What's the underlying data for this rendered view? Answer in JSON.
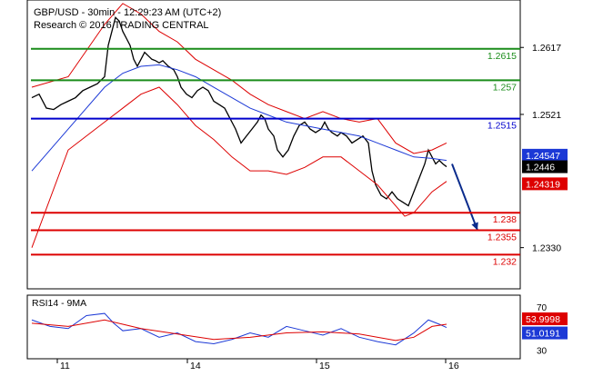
{
  "header": {
    "line1": "GBP/USD - 30min - 12:29:23 AM (UTC+2)",
    "line2": "Research © 2016 TRADING CENTRAL"
  },
  "chart_data": [
    {
      "type": "candlestick",
      "title": "GBP/USD - 30min - 12:29:23 AM (UTC+2)",
      "subtitle": "Research © 2016 TRADING CENTRAL",
      "x_ticks": [
        "11",
        "14",
        "15",
        "16"
      ],
      "ylim": [
        2.2316,
        1.2672
      ],
      "y_ticks": [
        {
          "value": 1.2617,
          "label": "1.2617"
        },
        {
          "value": 1.2521,
          "label": "1.2521"
        },
        {
          "value": 1.233,
          "label": "1.2330"
        }
      ],
      "levels": [
        {
          "value": 1.2615,
          "label": "1.2615",
          "color": "#1a8c1a"
        },
        {
          "value": 1.257,
          "label": "1.257",
          "color": "#1a8c1a"
        },
        {
          "value": 1.2515,
          "label": "1.2515",
          "color": "#0000cc"
        },
        {
          "value": 1.238,
          "label": "1.238",
          "color": "#dd0000"
        },
        {
          "value": 1.2355,
          "label": "1.2355",
          "color": "#dd0000"
        },
        {
          "value": 1.232,
          "label": "1.232",
          "color": "#dd0000"
        }
      ],
      "price_tags": [
        {
          "value": 1.24547,
          "label": "1.24547",
          "color": "#1c39d6"
        },
        {
          "value": 1.2446,
          "label": "1.2446",
          "color": "#000000"
        },
        {
          "value": 1.24319,
          "label": "1.24319",
          "color": "#dd0000"
        }
      ],
      "series": [
        {
          "name": "price",
          "color": "#000000",
          "points": [
            [
              0,
              1.2545
            ],
            [
              8,
              1.255
            ],
            [
              16,
              1.253
            ],
            [
              24,
              1.2528
            ],
            [
              32,
              1.2535
            ],
            [
              40,
              1.254
            ],
            [
              48,
              1.2545
            ],
            [
              56,
              1.2555
            ],
            [
              64,
              1.256
            ],
            [
              72,
              1.2565
            ],
            [
              80,
              1.2575
            ],
            [
              84,
              1.262
            ],
            [
              88,
              1.264
            ],
            [
              92,
              1.266
            ],
            [
              96,
              1.2655
            ],
            [
              100,
              1.264
            ],
            [
              104,
              1.263
            ],
            [
              108,
              1.262
            ],
            [
              112,
              1.26
            ],
            [
              116,
              1.259
            ],
            [
              120,
              1.26
            ],
            [
              124,
              1.261
            ],
            [
              128,
              1.2605
            ],
            [
              132,
              1.26
            ],
            [
              136,
              1.2598
            ],
            [
              140,
              1.2595
            ],
            [
              144,
              1.2598
            ],
            [
              150,
              1.259
            ],
            [
              156,
              1.2585
            ],
            [
              160,
              1.2575
            ],
            [
              164,
              1.256
            ],
            [
              170,
              1.255
            ],
            [
              176,
              1.2545
            ],
            [
              182,
              1.2555
            ],
            [
              188,
              1.256
            ],
            [
              194,
              1.2555
            ],
            [
              200,
              1.254
            ],
            [
              206,
              1.2535
            ],
            [
              212,
              1.253
            ],
            [
              218,
              1.2515
            ],
            [
              224,
              1.25
            ],
            [
              230,
              1.248
            ],
            [
              236,
              1.249
            ],
            [
              242,
              1.25
            ],
            [
              248,
              1.251
            ],
            [
              252,
              1.252
            ],
            [
              256,
              1.2515
            ],
            [
              260,
              1.25
            ],
            [
              266,
              1.249
            ],
            [
              270,
              1.247
            ],
            [
              276,
              1.246
            ],
            [
              282,
              1.247
            ],
            [
              288,
              1.249
            ],
            [
              294,
              1.2505
            ],
            [
              300,
              1.251
            ],
            [
              306,
              1.25
            ],
            [
              312,
              1.2495
            ],
            [
              318,
              1.25
            ],
            [
              322,
              1.251
            ],
            [
              326,
              1.25
            ],
            [
              330,
              1.2495
            ],
            [
              336,
              1.249
            ],
            [
              340,
              1.2495
            ],
            [
              346,
              1.249
            ],
            [
              352,
              1.248
            ],
            [
              358,
              1.2485
            ],
            [
              364,
              1.249
            ],
            [
              370,
              1.248
            ],
            [
              374,
              1.244
            ],
            [
              378,
              1.242
            ],
            [
              384,
              1.2405
            ],
            [
              390,
              1.24
            ],
            [
              396,
              1.241
            ],
            [
              402,
              1.24
            ],
            [
              408,
              1.2395
            ],
            [
              414,
              1.239
            ],
            [
              420,
              1.241
            ],
            [
              426,
              1.243
            ],
            [
              432,
              1.245
            ],
            [
              436,
              1.247
            ],
            [
              440,
              1.246
            ],
            [
              444,
              1.245
            ],
            [
              448,
              1.2455
            ],
            [
              452,
              1.245
            ],
            [
              456,
              1.2446
            ]
          ]
        },
        {
          "name": "MA50",
          "color": "#1c39d6",
          "points": [
            [
              0,
              1.244
            ],
            [
              40,
              1.25
            ],
            [
              80,
              1.256
            ],
            [
              100,
              1.258
            ],
            [
              120,
              1.259
            ],
            [
              140,
              1.2592
            ],
            [
              160,
              1.2585
            ],
            [
              180,
              1.2575
            ],
            [
              200,
              1.256
            ],
            [
              220,
              1.2545
            ],
            [
              240,
              1.253
            ],
            [
              260,
              1.252
            ],
            [
              280,
              1.251
            ],
            [
              300,
              1.2505
            ],
            [
              320,
              1.25
            ],
            [
              340,
              1.2495
            ],
            [
              360,
              1.249
            ],
            [
              380,
              1.248
            ],
            [
              400,
              1.247
            ],
            [
              420,
              1.246
            ],
            [
              440,
              1.2458
            ],
            [
              456,
              1.2455
            ]
          ]
        },
        {
          "name": "BB upper",
          "color": "#dd0000",
          "points": [
            [
              0,
              1.256
            ],
            [
              40,
              1.2575
            ],
            [
              80,
              1.265
            ],
            [
              100,
              1.268
            ],
            [
              120,
              1.2665
            ],
            [
              140,
              1.264
            ],
            [
              160,
              1.2625
            ],
            [
              180,
              1.26
            ],
            [
              200,
              1.2585
            ],
            [
              220,
              1.257
            ],
            [
              240,
              1.255
            ],
            [
              260,
              1.2535
            ],
            [
              280,
              1.2525
            ],
            [
              300,
              1.2515
            ],
            [
              320,
              1.2525
            ],
            [
              340,
              1.2515
            ],
            [
              360,
              1.251
            ],
            [
              380,
              1.2515
            ],
            [
              400,
              1.248
            ],
            [
              420,
              1.2465
            ],
            [
              440,
              1.247
            ],
            [
              456,
              1.248
            ]
          ]
        },
        {
          "name": "BB lower",
          "color": "#dd0000",
          "points": [
            [
              0,
              1.233
            ],
            [
              40,
              1.247
            ],
            [
              80,
              1.251
            ],
            [
              100,
              1.253
            ],
            [
              120,
              1.255
            ],
            [
              140,
              1.256
            ],
            [
              160,
              1.2535
            ],
            [
              180,
              1.2505
            ],
            [
              200,
              1.2485
            ],
            [
              220,
              1.246
            ],
            [
              240,
              1.244
            ],
            [
              260,
              1.244
            ],
            [
              280,
              1.2435
            ],
            [
              300,
              1.2445
            ],
            [
              320,
              1.246
            ],
            [
              340,
              1.246
            ],
            [
              360,
              1.244
            ],
            [
              380,
              1.242
            ],
            [
              400,
              1.239
            ],
            [
              410,
              1.2375
            ],
            [
              420,
              1.238
            ],
            [
              440,
              1.241
            ],
            [
              456,
              1.2425
            ]
          ]
        }
      ],
      "forecast_arrow": {
        "from": [
          462,
          1.245
        ],
        "to": [
          490,
          1.2355
        ],
        "color": "#0a2b8c"
      }
    },
    {
      "type": "line",
      "title": "RSI14 - 9MA",
      "ylim": [
        23,
        80
      ],
      "y_ticks": [
        {
          "value": 70,
          "label": "70"
        },
        {
          "value": 30,
          "label": "30"
        }
      ],
      "value_tags": [
        {
          "value": 53.9998,
          "label": "53.9998",
          "color": "#dd0000"
        },
        {
          "value": 51.0191,
          "label": "51.0191",
          "color": "#1c39d6"
        }
      ],
      "series": [
        {
          "name": "RSI14",
          "color": "#1c39d6",
          "points": [
            [
              0,
              58
            ],
            [
              20,
              52
            ],
            [
              40,
              50
            ],
            [
              60,
              62
            ],
            [
              80,
              64
            ],
            [
              90,
              55
            ],
            [
              100,
              48
            ],
            [
              120,
              50
            ],
            [
              140,
              42
            ],
            [
              160,
              46
            ],
            [
              180,
              38
            ],
            [
              200,
              36
            ],
            [
              220,
              40
            ],
            [
              240,
              46
            ],
            [
              260,
              42
            ],
            [
              280,
              52
            ],
            [
              300,
              48
            ],
            [
              320,
              44
            ],
            [
              340,
              50
            ],
            [
              360,
              42
            ],
            [
              380,
              38
            ],
            [
              400,
              35
            ],
            [
              420,
              46
            ],
            [
              436,
              58
            ],
            [
              448,
              54
            ],
            [
              456,
              51
            ]
          ]
        },
        {
          "name": "MA9",
          "color": "#dd0000",
          "points": [
            [
              0,
              55
            ],
            [
              40,
              52
            ],
            [
              80,
              58
            ],
            [
              100,
              54
            ],
            [
              120,
              50
            ],
            [
              160,
              45
            ],
            [
              200,
              40
            ],
            [
              240,
              42
            ],
            [
              280,
              46
            ],
            [
              320,
              47
            ],
            [
              360,
              45
            ],
            [
              400,
              39
            ],
            [
              420,
              42
            ],
            [
              440,
              52
            ],
            [
              456,
              54
            ]
          ]
        }
      ]
    }
  ]
}
